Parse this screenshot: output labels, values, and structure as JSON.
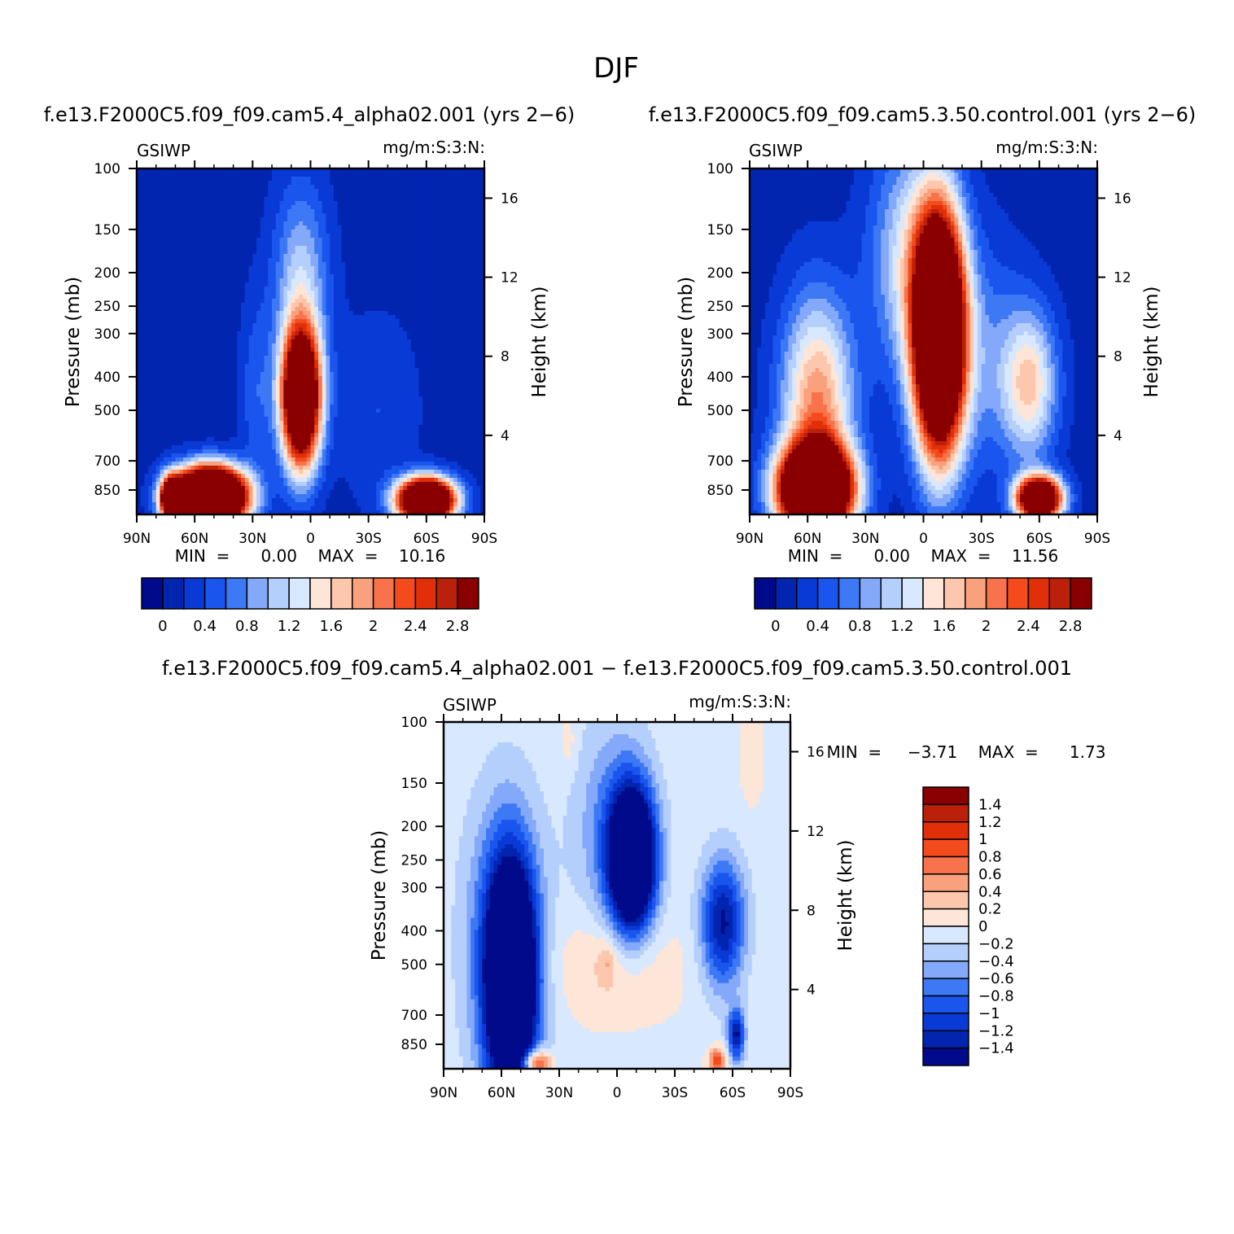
{
  "page": {
    "title": "DJF",
    "diff_title": "f.e13.F2000C5.f09_f09.cam5.4_alpha02.001  −  f.e13.F2000C5.f09_f09.cam5.3.50.control.001"
  },
  "panels": [
    {
      "title": "f.e13.F2000C5.f09_f09.cam5.4_alpha02.001  (yrs  2−6)",
      "left_label": "GSIWP",
      "right_label": "mg/m:S:3:N:",
      "y_axis_label": "Pressure  (mb)",
      "y2_axis_label": "Height  (km)",
      "stats": "MIN  =      0.00    MAX  =    10.16"
    },
    {
      "title": "f.e13.F2000C5.f09_f09.cam5.3.50.control.001  (yrs  2−6)",
      "left_label": "GSIWP",
      "right_label": "mg/m:S:3:N:",
      "y_axis_label": "Pressure  (mb)",
      "y2_axis_label": "Height  (km)",
      "stats": "MIN  =      0.00    MAX  =    11.56"
    },
    {
      "title": "",
      "left_label": "GSIWP",
      "right_label": "mg/m:S:3:N:",
      "y_axis_label": "Pressure  (mb)",
      "y2_axis_label": "Height  (km)",
      "stats": "MIN  =     −3.71    MAX  =      1.73"
    }
  ],
  "colors": {
    "abs_scale": [
      "#000a8a",
      "#0225b0",
      "#0a3ad6",
      "#1a55ee",
      "#3d78f5",
      "#84a8fa",
      "#b5cffd",
      "#d8e8fe",
      "#fde5d7",
      "#fcc7ad",
      "#f9a07c",
      "#f8734b",
      "#f44b1d",
      "#e12f09",
      "#bb200a",
      "#8a0000"
    ],
    "diff_scale": [
      "#000a8a",
      "#0225b0",
      "#0a3ad6",
      "#1a55ee",
      "#3d78f5",
      "#84a8fa",
      "#b5cffd",
      "#d8e8fe",
      "#fde5d7",
      "#fcc7ad",
      "#f9a07c",
      "#f8734b",
      "#f44b1d",
      "#e12f09",
      "#bb200a",
      "#8a0000"
    ]
  },
  "chart_data": [
    {
      "type": "heatmap",
      "title": "f.e13.F2000C5.f09_f09.cam5.4_alpha02.001  (yrs  2−6)",
      "variable": "GSIWP",
      "units": "mg/m:S:3:N:",
      "xlabel": "",
      "ylabel": "Pressure  (mb)",
      "y2label": "Height  (km)",
      "x_ticks": [
        "90N",
        "60N",
        "30N",
        "0",
        "30S",
        "60S",
        "90S"
      ],
      "y_ticks": [
        100,
        150,
        200,
        250,
        300,
        400,
        500,
        700,
        850
      ],
      "y2_ticks": [
        4,
        8,
        12,
        16
      ],
      "y_scale": "log",
      "xlim": [
        90,
        -90
      ],
      "ylim": [
        1000,
        100
      ],
      "colorbar_labels": [
        "0",
        "0.4",
        "0.8",
        "1.2",
        "1.6",
        "2",
        "2.4",
        "2.8"
      ],
      "colorbar_levels": [
        0,
        0.2,
        0.4,
        0.6,
        0.8,
        1,
        1.2,
        1.4,
        1.6,
        1.8,
        2,
        2.2,
        2.4,
        2.6,
        2.8
      ],
      "min": 0.0,
      "max": 10.16,
      "background_value": 0.1,
      "features": [
        {
          "lat": 5,
          "p": 460,
          "slat": 7,
          "sp": 0.32,
          "amp": 5.0
        },
        {
          "lat": 5,
          "p": 210,
          "slat": 10,
          "sp": 0.45,
          "amp": 1.0
        },
        {
          "lat": 52,
          "p": 890,
          "slat": 12,
          "sp": 0.13,
          "amp": 8.0
        },
        {
          "lat": 72,
          "p": 900,
          "slat": 4,
          "sp": 0.1,
          "amp": 4.0
        },
        {
          "lat": 28,
          "p": 450,
          "slat": 6,
          "sp": 0.45,
          "amp": 0.45
        },
        {
          "lat": -60,
          "p": 910,
          "slat": 10,
          "sp": 0.1,
          "amp": 6.0
        },
        {
          "lat": -35,
          "p": 500,
          "slat": 15,
          "sp": 0.45,
          "amp": 0.3
        }
      ]
    },
    {
      "type": "heatmap",
      "title": "f.e13.F2000C5.f09_f09.cam5.3.50.control.001  (yrs  2−6)",
      "variable": "GSIWP",
      "units": "mg/m:S:3:N:",
      "xlabel": "",
      "ylabel": "Pressure  (mb)",
      "y2label": "Height  (km)",
      "x_ticks": [
        "90N",
        "60N",
        "30N",
        "0",
        "30S",
        "60S",
        "90S"
      ],
      "y_ticks": [
        100,
        150,
        200,
        250,
        300,
        400,
        500,
        700,
        850
      ],
      "y2_ticks": [
        4,
        8,
        12,
        16
      ],
      "y_scale": "log",
      "xlim": [
        90,
        -90
      ],
      "ylim": [
        1000,
        100
      ],
      "colorbar_labels": [
        "0",
        "0.4",
        "0.8",
        "1.2",
        "1.6",
        "2",
        "2.4",
        "2.8"
      ],
      "colorbar_levels": [
        0,
        0.2,
        0.4,
        0.6,
        0.8,
        1,
        1.2,
        1.4,
        1.6,
        1.8,
        2,
        2.2,
        2.4,
        2.6,
        2.8
      ],
      "min": 0.0,
      "max": 11.56,
      "background_value": 0.1,
      "features": [
        {
          "lat": -8,
          "p": 300,
          "slat": 9,
          "sp": 0.55,
          "amp": 6.0
        },
        {
          "lat": 8,
          "p": 180,
          "slat": 14,
          "sp": 0.55,
          "amp": 1.1
        },
        {
          "lat": 56,
          "p": 850,
          "slat": 13,
          "sp": 0.2,
          "amp": 6.0
        },
        {
          "lat": 55,
          "p": 480,
          "slat": 13,
          "sp": 0.5,
          "amp": 1.9
        },
        {
          "lat": -60,
          "p": 900,
          "slat": 8,
          "sp": 0.1,
          "amp": 5.0
        },
        {
          "lat": -55,
          "p": 420,
          "slat": 10,
          "sp": 0.35,
          "amp": 1.5
        },
        {
          "lat": -30,
          "p": 350,
          "slat": 15,
          "sp": 0.55,
          "amp": 0.6
        }
      ]
    },
    {
      "type": "heatmap",
      "title": "f.e13.F2000C5.f09_f09.cam5.4_alpha02.001  −  f.e13.F2000C5.f09_f09.cam5.3.50.control.001",
      "variable": "GSIWP",
      "units": "mg/m:S:3:N:",
      "xlabel": "",
      "ylabel": "Pressure  (mb)",
      "y2label": "Height  (km)",
      "x_ticks": [
        "90N",
        "60N",
        "30N",
        "0",
        "30S",
        "60S",
        "90S"
      ],
      "y_ticks": [
        100,
        150,
        200,
        250,
        300,
        400,
        500,
        700,
        850
      ],
      "y2_ticks": [
        4,
        8,
        12,
        16
      ],
      "y_scale": "log",
      "xlim": [
        90,
        -90
      ],
      "ylim": [
        1000,
        100
      ],
      "colorbar_labels": [
        "1.4",
        "1.2",
        "1",
        "0.8",
        "0.6",
        "0.4",
        "0.2",
        "0",
        "−0.2",
        "−0.4",
        "−0.6",
        "−0.8",
        "−1",
        "−1.2",
        "−1.4"
      ],
      "colorbar_levels": [
        -1.4,
        -1.2,
        -1,
        -0.8,
        -0.6,
        -0.4,
        -0.2,
        0,
        0.2,
        0.4,
        0.6,
        0.8,
        1,
        1.2,
        1.4
      ],
      "min": -3.71,
      "max": 1.73,
      "background_value": -0.05,
      "features": [
        {
          "lat": -8,
          "p": 250,
          "slat": 8,
          "sp": 0.32,
          "amp": -3.0
        },
        {
          "lat": 2,
          "p": 200,
          "slat": 14,
          "sp": 0.5,
          "amp": -0.6
        },
        {
          "lat": 55,
          "p": 560,
          "slat": 9,
          "sp": 0.55,
          "amp": -3.0
        },
        {
          "lat": 60,
          "p": 420,
          "slat": 15,
          "sp": 0.7,
          "amp": -0.6
        },
        {
          "lat": -55,
          "p": 380,
          "slat": 8,
          "sp": 0.3,
          "amp": -1.4
        },
        {
          "lat": -62,
          "p": 800,
          "slat": 3,
          "sp": 0.12,
          "amp": -1.4
        },
        {
          "lat": 2,
          "p": 500,
          "slat": 22,
          "sp": 0.25,
          "amp": 0.35
        },
        {
          "lat": 5,
          "p": 490,
          "slat": 3,
          "sp": 0.1,
          "amp": 0.3
        },
        {
          "lat": 42,
          "p": 960,
          "slat": 5,
          "sp": 0.06,
          "amp": 1.5
        },
        {
          "lat": -52,
          "p": 950,
          "slat": 3,
          "sp": 0.06,
          "amp": 1.0
        },
        {
          "lat": 25,
          "p": 115,
          "slat": 3,
          "sp": 0.15,
          "amp": 0.2
        },
        {
          "lat": -70,
          "p": 120,
          "slat": 4,
          "sp": 0.25,
          "amp": 0.2
        }
      ]
    }
  ]
}
